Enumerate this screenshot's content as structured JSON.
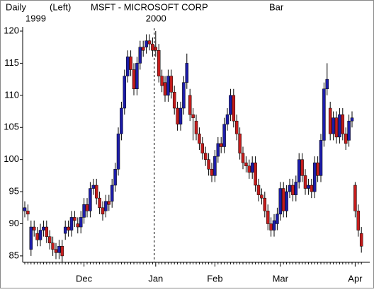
{
  "chart_data": {
    "type": "candlestick",
    "header": [
      "Daily",
      "(Left)",
      "MSFT - MICROSOFT CORP",
      "Bar"
    ],
    "year_labels": [
      "1999",
      "2000"
    ],
    "up_color": "#1c1ca8",
    "down_color": "#c41c1c",
    "ylim": [
      84,
      120
    ],
    "yticks": [
      85,
      90,
      95,
      100,
      105,
      110,
      115,
      120
    ],
    "categories": [
      null,
      null,
      null,
      null,
      null,
      null,
      null,
      null,
      null,
      null,
      null,
      null,
      null,
      null,
      null,
      null,
      null,
      null,
      null,
      "Dec",
      null,
      null,
      null,
      null,
      null,
      null,
      null,
      null,
      null,
      null,
      null,
      null,
      null,
      null,
      null,
      null,
      null,
      null,
      null,
      null,
      null,
      null,
      "Jan",
      null,
      null,
      null,
      null,
      null,
      null,
      null,
      null,
      null,
      null,
      null,
      null,
      null,
      null,
      null,
      null,
      null,
      null,
      "Feb",
      null,
      null,
      null,
      null,
      null,
      null,
      null,
      null,
      null,
      null,
      null,
      null,
      null,
      null,
      null,
      null,
      null,
      null,
      null,
      null,
      "Mar",
      null,
      null,
      null,
      null,
      null,
      null,
      null,
      null,
      null,
      null,
      null,
      null,
      null,
      null,
      null,
      null,
      null,
      null,
      null,
      null,
      null,
      null,
      null,
      "Apr",
      null,
      null
    ],
    "open": [
      92,
      92,
      86,
      89.5,
      88.5,
      87.5,
      89,
      89.5,
      88,
      87,
      86,
      85.5,
      86.5,
      88.5,
      89.5,
      89,
      91,
      90,
      89.5,
      91,
      93,
      92,
      95.5,
      96,
      94,
      92.5,
      92,
      93.5,
      93.5,
      96,
      98.5,
      104,
      108,
      113,
      116,
      114,
      111,
      115,
      117.5,
      117.5,
      118.5,
      118,
      117.5,
      117,
      113,
      112,
      110,
      113,
      110.5,
      108,
      105.5,
      108,
      112,
      110,
      107,
      106,
      104,
      102.5,
      101,
      100,
      98.5,
      97.5,
      100.5,
      102.5,
      102,
      105.5,
      107,
      110,
      106,
      104,
      101,
      99.5,
      99,
      98,
      99.5,
      96,
      94.5,
      94,
      92,
      90,
      89,
      90,
      91.5,
      95.5,
      92,
      95,
      96,
      94.5,
      96.5,
      100,
      97.5,
      95.5,
      96,
      95,
      99.5,
      97.5,
      103,
      111,
      108,
      104,
      106.5,
      103.5,
      107,
      104,
      103,
      106,
      96,
      92,
      88.5
    ],
    "high": [
      93.5,
      93,
      90.5,
      90.5,
      89.5,
      90,
      90.5,
      90.5,
      89,
      88,
      87,
      87.5,
      87.5,
      90.5,
      90.5,
      92,
      92,
      91,
      92,
      94,
      94,
      96.5,
      97,
      97,
      95,
      93.5,
      94.5,
      94.5,
      97,
      99.5,
      105,
      109,
      114,
      117,
      117,
      115,
      116,
      118.5,
      118.5,
      119.5,
      119.5,
      119,
      120,
      118,
      114,
      113,
      114,
      114,
      111.5,
      109,
      109,
      113,
      116.5,
      111,
      108,
      107,
      105,
      103.5,
      102,
      101,
      99.5,
      101.5,
      103.5,
      103.5,
      106.5,
      108,
      111,
      111,
      107,
      105,
      102,
      100.5,
      100,
      100.5,
      100.5,
      97,
      95.5,
      95,
      93,
      91,
      91.5,
      92.5,
      96.5,
      96.5,
      96,
      97,
      97,
      97.5,
      101,
      101,
      98.5,
      97,
      97,
      100.5,
      100.5,
      104,
      112,
      115,
      109,
      107.5,
      107.5,
      108,
      108,
      105,
      107,
      107.5,
      96.5,
      93,
      89.5
    ],
    "low": [
      91,
      90.5,
      85,
      88,
      86.5,
      86.5,
      88,
      87,
      86,
      85,
      84.5,
      84.5,
      84,
      87.5,
      88,
      88,
      89.5,
      88.5,
      88.5,
      90,
      91,
      91,
      94.5,
      93,
      91.5,
      90.5,
      91,
      92,
      92.5,
      95,
      97.5,
      103,
      107,
      112,
      113,
      110,
      110,
      114,
      116,
      116.5,
      117,
      116,
      116,
      112,
      110.5,
      109,
      109,
      109.5,
      107,
      104.5,
      104.5,
      107,
      111,
      106,
      103,
      103,
      101.5,
      100,
      99,
      97.5,
      96.5,
      96.5,
      99.5,
      101,
      101,
      104.5,
      106,
      105,
      103,
      100,
      98.5,
      98,
      97,
      97,
      95,
      93.5,
      93,
      91,
      89,
      88,
      88,
      89,
      90.5,
      91,
      91,
      94,
      93.5,
      93.5,
      95.5,
      96.5,
      94.5,
      94.5,
      94,
      94,
      96.5,
      96.5,
      102,
      110,
      103,
      103,
      102.5,
      102.5,
      103,
      101.5,
      102,
      105,
      91,
      88,
      85.5
    ],
    "close": [
      92.5,
      91.5,
      89.5,
      89,
      87.5,
      89,
      89.5,
      88,
      87,
      86,
      85.5,
      86.5,
      85,
      89.5,
      89,
      91,
      90.5,
      89.5,
      91,
      93,
      92,
      95.5,
      96,
      94,
      92.5,
      91.5,
      93.5,
      93,
      96,
      98.5,
      104,
      108,
      113,
      116,
      114,
      111,
      115,
      117.5,
      117,
      118.5,
      118,
      117,
      117,
      113,
      111.5,
      110,
      113,
      110.5,
      108,
      105.5,
      108,
      112,
      115,
      107,
      106.5,
      104,
      102.5,
      101,
      100,
      98.5,
      97.5,
      100.5,
      102.5,
      102,
      105.5,
      107,
      110,
      106,
      104,
      101,
      99.5,
      99,
      98,
      99.5,
      96,
      94.5,
      94,
      92,
      90,
      89,
      90.5,
      91.5,
      95.5,
      92,
      95,
      96,
      94.5,
      96.5,
      100,
      97.5,
      95.5,
      96,
      95,
      99.5,
      97.5,
      103,
      111,
      112.5,
      104,
      106.5,
      103.5,
      107,
      104,
      102.5,
      106,
      106.5,
      92,
      89,
      86.5
    ]
  }
}
